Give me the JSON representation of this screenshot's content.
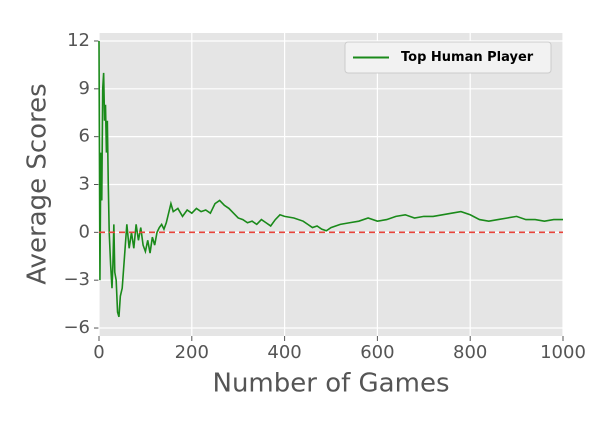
{
  "chart_data": {
    "type": "line",
    "x_label": "Number of Games",
    "y_label": "Average Scores",
    "xlim": [
      0,
      1000
    ],
    "ylim": [
      -6.5,
      12.5
    ],
    "xticks": [
      0,
      200,
      400,
      600,
      800,
      1000
    ],
    "yticks": [
      {
        "value": -6,
        "label": "−6"
      },
      {
        "value": -3,
        "label": "−3"
      },
      0,
      3,
      6,
      9,
      12
    ],
    "grid": true,
    "legend": "upper right",
    "reference_line": {
      "value": 0,
      "color": "#e8443a"
    },
    "x": [
      0,
      2,
      4,
      6,
      8,
      10,
      12,
      14,
      16,
      18,
      20,
      22,
      25,
      28,
      30,
      32,
      34,
      37,
      40,
      43,
      46,
      50,
      55,
      60,
      65,
      70,
      75,
      80,
      85,
      90,
      95,
      100,
      105,
      110,
      115,
      120,
      125,
      130,
      135,
      140,
      145,
      150,
      155,
      160,
      170,
      180,
      190,
      200,
      210,
      220,
      230,
      240,
      250,
      260,
      270,
      280,
      290,
      300,
      310,
      320,
      330,
      340,
      350,
      360,
      370,
      380,
      390,
      400,
      420,
      440,
      450,
      460,
      470,
      480,
      490,
      500,
      520,
      540,
      560,
      580,
      600,
      620,
      640,
      660,
      680,
      700,
      720,
      740,
      760,
      780,
      800,
      820,
      840,
      860,
      880,
      900,
      920,
      940,
      960,
      980,
      1000
    ],
    "series": [
      {
        "name": "Top Human Player",
        "color": "#1a8a1a",
        "values": [
          12,
          -3,
          5,
          2,
          9,
          10,
          7,
          8,
          5,
          7,
          3,
          0,
          -2,
          -3.5,
          -2,
          0.5,
          -2.5,
          -3,
          -5,
          -5.3,
          -4,
          -3.5,
          -1.5,
          0.5,
          -1,
          0,
          -1,
          0.5,
          -0.5,
          0.3,
          -0.8,
          -1.2,
          -0.5,
          -1.3,
          -0.3,
          -0.8,
          0,
          0.3,
          0.5,
          0.2,
          0.6,
          1.2,
          1.8,
          1.3,
          1.5,
          1.0,
          1.4,
          1.2,
          1.5,
          1.3,
          1.4,
          1.2,
          1.8,
          2.0,
          1.7,
          1.5,
          1.2,
          0.9,
          0.8,
          0.6,
          0.7,
          0.5,
          0.8,
          0.6,
          0.4,
          0.8,
          1.1,
          1.0,
          0.9,
          0.7,
          0.5,
          0.3,
          0.4,
          0.2,
          0.1,
          0.3,
          0.5,
          0.6,
          0.7,
          0.9,
          0.7,
          0.8,
          1.0,
          1.1,
          0.9,
          1.0,
          1.0,
          1.1,
          1.2,
          1.3,
          1.1,
          0.8,
          0.7,
          0.8,
          0.9,
          1.0,
          0.8,
          0.8,
          0.7,
          0.8,
          0.8
        ]
      }
    ]
  }
}
